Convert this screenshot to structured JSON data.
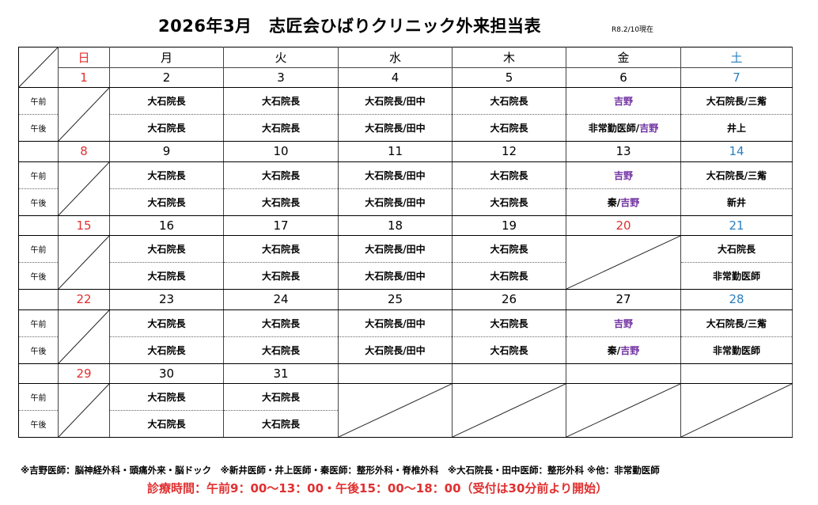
{
  "title": "2026年3月　志匠会ひばりクリニック外来担当表",
  "as_of": "R8.2/10現在",
  "weekdays": [
    "日",
    "月",
    "火",
    "水",
    "木",
    "金",
    "土"
  ],
  "slots": {
    "am": "午前",
    "pm": "午後"
  },
  "weeks": [
    {
      "days": [
        "1",
        "2",
        "3",
        "4",
        "5",
        "6",
        "7"
      ],
      "am": [
        "",
        "大石院長",
        "大石院長",
        "大石院長/田中",
        "大石院長",
        "吉野",
        "大石院長/三觜"
      ],
      "pm": [
        "",
        "大石院長",
        "大石院長",
        "大石院長/田中",
        "大石院長",
        [
          "非常勤医師/",
          "吉野"
        ],
        "井上"
      ]
    },
    {
      "days": [
        "8",
        "9",
        "10",
        "11",
        "12",
        "13",
        "14"
      ],
      "am": [
        "",
        "大石院長",
        "大石院長",
        "大石院長/田中",
        "大石院長",
        "吉野",
        "大石院長/三觜"
      ],
      "pm": [
        "",
        "大石院長",
        "大石院長",
        "大石院長/田中",
        "大石院長",
        [
          "秦/",
          "吉野"
        ],
        "新井"
      ]
    },
    {
      "days": [
        "15",
        "16",
        "17",
        "18",
        "19",
        "20",
        "21"
      ],
      "am": [
        "",
        "大石院長",
        "大石院長",
        "大石院長/田中",
        "大石院長",
        "",
        "大石院長"
      ],
      "pm": [
        "",
        "大石院長",
        "大石院長",
        "大石院長/田中",
        "大石院長",
        "",
        "非常勤医師"
      ]
    },
    {
      "days": [
        "22",
        "23",
        "24",
        "25",
        "26",
        "27",
        "28"
      ],
      "am": [
        "",
        "大石院長",
        "大石院長",
        "大石院長/田中",
        "大石院長",
        "吉野",
        "大石院長/三觜"
      ],
      "pm": [
        "",
        "大石院長",
        "大石院長",
        "大石院長/田中",
        "大石院長",
        [
          "秦/",
          "吉野"
        ],
        "非常勤医師"
      ]
    },
    {
      "days": [
        "29",
        "30",
        "31",
        "",
        "",
        "",
        ""
      ],
      "am": [
        "",
        "大石院長",
        "大石院長",
        "",
        "",
        "",
        ""
      ],
      "pm": [
        "",
        "大石院長",
        "大石院長",
        "",
        "",
        "",
        ""
      ]
    }
  ],
  "note": "※吉野医師：脳神経外科・頭痛外来・脳ドック　※新井医師・井上医師・秦医師：整形外科・脊椎外科　※大石院長・田中医師：整形外科 ※他：非常勤医師",
  "hours": "診療時間：午前9：00～13：00・午後15：00～18：00（受付は30分前より開始）",
  "colors": {
    "sunday": "#e03030",
    "saturday": "#2a7fc0",
    "yoshino": "#7030a0",
    "hours": "#e03030"
  }
}
